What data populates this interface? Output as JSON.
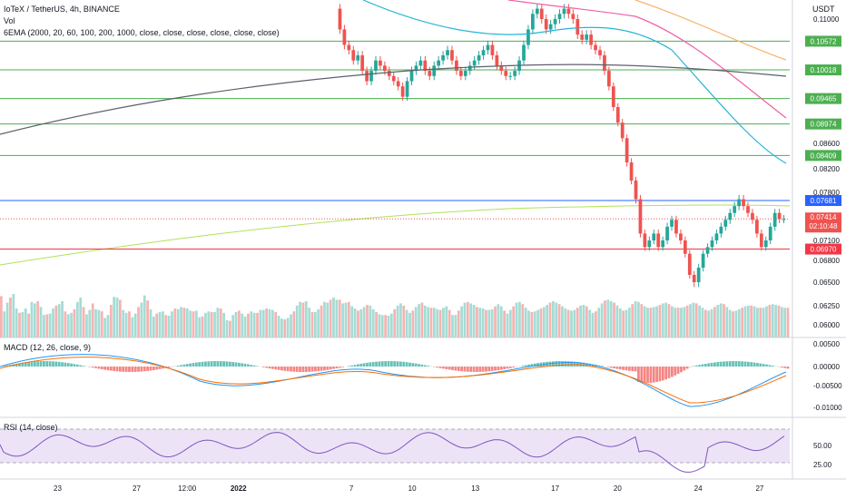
{
  "chart_title": "IoTeX / TetherUS, 4h, BINANCE",
  "currency": "USDT",
  "legend": {
    "vol": "Vol",
    "ema": "6EMA (2000, 20, 60, 100, 200, 1000, close, close, close, close, close, close)",
    "macd": "MACD (12, 26, close, 9)",
    "rsi": "RSI (14, close)"
  },
  "colors": {
    "up": "#26a69a",
    "down": "#ef5350",
    "hline_green": "#4caf50",
    "hline_blue": "#2962ff",
    "hline_red": "#f23645",
    "ema_20": "#26b5d6",
    "ema_60": "#ef5fa7",
    "ema_100": "#f7b36b",
    "ema_200": "#5d606b",
    "ema_1000": "#b2e05a",
    "macd_line": "#2196f3",
    "signal_line": "#ff6d00",
    "rsi_line": "#7e57c2",
    "rsi_band": "#ede3f7"
  },
  "price_axis": {
    "ticks": [
      "0.11000",
      "0.08600",
      "0.08200",
      "0.07800",
      "0.07100",
      "0.06800",
      "0.06500",
      "0.06250",
      "0.06000"
    ],
    "tick_values": [
      0.11,
      0.086,
      0.082,
      0.078,
      0.071,
      0.068,
      0.065,
      0.0625,
      0.06
    ]
  },
  "hlines": [
    {
      "label": "0.10572",
      "value": 0.10572,
      "kind": "green"
    },
    {
      "label": "0.10018",
      "value": 0.10018,
      "kind": "green"
    },
    {
      "label": "0.09465",
      "value": 0.09465,
      "kind": "green"
    },
    {
      "label": "0.08974",
      "value": 0.08974,
      "kind": "green"
    },
    {
      "label": "0.08409",
      "value": 0.08409,
      "kind": "green"
    },
    {
      "label": "0.07681",
      "value": 0.07681,
      "kind": "blue"
    },
    {
      "label": "0.06970",
      "value": 0.0697,
      "kind": "red"
    }
  ],
  "current_price": {
    "label": "0.07414",
    "countdown": "02:10:48",
    "value": 0.07414
  },
  "macd_axis": {
    "ticks": [
      "0.00500",
      "0.00000",
      "-0.00500",
      "-0.01000"
    ],
    "tick_values": [
      0.005,
      0,
      -0.005,
      -0.01
    ]
  },
  "rsi_axis": {
    "ticks": [
      "50.00",
      "25.00"
    ],
    "tick_values": [
      50,
      25
    ]
  },
  "time_axis": [
    {
      "label": "23",
      "pos": 0.073
    },
    {
      "label": "27",
      "pos": 0.173
    },
    {
      "label": "12:00",
      "pos": 0.237
    },
    {
      "label": "2022",
      "pos": 0.302,
      "bold": true
    },
    {
      "label": "7",
      "pos": 0.445
    },
    {
      "label": "10",
      "pos": 0.522
    },
    {
      "label": "13",
      "pos": 0.602
    },
    {
      "label": "17",
      "pos": 0.703
    },
    {
      "label": "20",
      "pos": 0.782
    },
    {
      "label": "24",
      "pos": 0.884
    },
    {
      "label": "27",
      "pos": 0.962
    }
  ],
  "chart_data": {
    "type": "candlestick",
    "title": "IoTeX / TetherUS, 4h, BINANCE",
    "ylim": [
      0.0585,
      0.1125
    ],
    "hist_y_fractions": [
      0.5,
      0.5,
      0.5,
      0.5,
      0.5,
      0.5,
      0.5,
      0.5,
      0.5,
      0.5,
      0.5,
      0.5,
      0.5,
      0.5,
      0.5,
      0.5,
      0.5,
      0.5,
      0.5,
      0.5,
      0.5,
      0.5,
      0.5,
      0.5,
      0.5,
      0.5,
      0.5,
      0.5,
      0.5,
      0.5,
      0.5,
      0.5,
      0.5,
      0.5,
      0.5,
      0.5,
      0.5,
      0.5,
      0.5,
      0.5,
      0.5,
      0.5,
      0.5,
      0.5,
      0.5,
      0.5,
      0.5,
      0.5,
      0.5,
      0.5,
      0.5,
      0.5,
      0.5,
      0.5,
      0.5,
      0.5,
      0.5,
      0.5,
      0.5,
      0.5,
      0.5,
      0.5,
      0.5,
      0.5,
      0.5,
      0.5,
      0.5,
      0.5,
      0.5,
      0.5,
      0.5,
      0.5,
      0.5,
      0.5,
      0.5,
      0.5,
      0.5,
      0.5,
      0.5,
      0.5,
      0.5,
      0.5,
      0.5,
      0.5,
      0.5,
      0.5,
      0.5,
      0.5,
      0.5,
      0.5,
      0.5,
      0.5,
      0.5,
      0.5,
      0.5,
      0.5,
      0.5,
      0.5,
      0.5,
      0.5,
      0.5,
      0.5,
      0.5,
      0.5,
      0.5,
      0.5,
      0.5,
      0.5,
      0.5,
      0.5,
      0.5,
      0.5,
      0.5,
      0.5,
      0.5,
      0.5,
      0.5,
      0.5,
      0.5,
      0.5,
      0.5,
      0.5,
      0.5,
      0.5,
      0.5,
      0.5,
      0.5,
      0.5,
      0.5,
      0.5,
      0.5,
      0.5,
      0.5,
      0.5,
      0.5,
      0.5,
      0.5,
      0.5,
      0.5,
      0.5,
      0.5,
      0.5,
      0.5,
      0.5,
      0.5,
      0.5,
      0.5,
      0.5,
      0.5,
      0.5,
      0.5,
      0.5,
      0.5,
      0.5,
      0.5,
      0.5,
      0.5,
      0.5,
      0.5,
      0.5,
      0.5,
      0.5,
      0.5,
      0.5,
      0.5,
      0.5,
      0.5,
      0.5,
      0.5,
      0.5,
      0.5,
      0.5,
      0.5,
      0.5,
      0.5,
      0.5,
      0.5,
      0.5,
      0.5,
      0.5,
      0.5,
      0.5,
      0.5,
      0.5,
      0.5,
      0.5,
      0.5,
      0.5,
      0.5,
      0.5,
      0.5,
      0.5,
      0.5,
      0.5,
      0.5,
      0.5,
      0.5,
      0.5,
      0.5,
      0.5,
      0.5,
      0.5,
      0.5,
      0.5,
      0.5,
      0.5,
      0.5,
      0.5,
      0.5,
      0.5,
      0.5,
      0.5,
      0.5,
      0.5,
      0.5,
      0.5,
      0.5,
      0.5,
      0.5,
      0.5,
      0.5,
      0.5,
      0.5,
      0.5,
      0.5,
      0.5,
      0.5,
      0.5,
      0.5,
      0.5,
      0.5,
      0.5,
      0.5,
      0.5,
      0.5,
      0.5,
      0.5,
      0.5,
      0.5,
      0.5,
      0.5,
      0.5,
      0.5,
      0.5,
      0.5,
      0.5,
      0.5,
      0.5,
      0.5,
      0.5,
      0.5,
      0.5,
      0.5,
      0.5,
      0.5,
      0.5,
      0.5,
      0.5,
      0.5
    ],
    "volume_y_fractions": [
      0.57,
      0.36,
      0.48,
      0.55,
      0.6,
      0.4,
      0.34,
      0.35,
      0.4,
      0.33,
      0.49,
      0.47,
      0.5,
      0.42,
      0.31,
      0.32,
      0.33,
      0.4,
      0.44,
      0.46,
      0.5,
      0.36,
      0.32,
      0.34,
      0.39,
      0.49,
      0.55,
      0.42,
      0.32,
      0.38,
      0.47,
      0.39,
      0.38,
      0.36,
      0.27,
      0.31,
      0.45,
      0.56,
      0.55,
      0.52,
      0.38,
      0.34,
      0.36,
      0.28,
      0.33,
      0.42,
      0.48,
      0.58,
      0.51,
      0.39,
      0.29,
      0.33,
      0.35,
      0.36,
      0.31,
      0.3,
      0.36,
      0.4,
      0.39,
      0.42,
      0.41,
      0.4,
      0.37,
      0.36,
      0.37,
      0.28,
      0.29,
      0.34,
      0.36,
      0.35,
      0.35,
      0.41,
      0.4,
      0.34,
      0.24,
      0.23,
      0.31,
      0.35,
      0.37,
      0.33,
      0.29,
      0.33,
      0.36,
      0.34,
      0.34,
      0.38,
      0.38,
      0.4,
      0.39,
      0.38,
      0.35,
      0.3,
      0.26,
      0.25,
      0.27,
      0.32,
      0.36,
      0.44,
      0.49,
      0.48,
      0.5,
      0.41,
      0.35,
      0.35,
      0.39,
      0.44,
      0.49,
      0.48,
      0.52,
      0.55,
      0.52,
      0.52,
      0.47,
      0.48,
      0.49,
      0.43,
      0.4,
      0.37,
      0.39,
      0.42,
      0.45,
      0.44,
      0.39,
      0.35,
      0.32,
      0.31,
      0.31,
      0.3,
      0.33,
      0.39,
      0.44,
      0.47,
      0.44,
      0.38,
      0.34,
      0.37,
      0.42,
      0.46,
      0.48,
      0.44,
      0.42,
      0.41,
      0.41,
      0.39,
      0.38,
      0.41,
      0.43,
      0.38,
      0.31,
      0.31,
      0.37,
      0.43,
      0.48,
      0.49,
      0.47,
      0.45,
      0.42,
      0.41,
      0.4,
      0.38,
      0.38,
      0.39,
      0.43,
      0.46,
      0.43,
      0.37,
      0.33,
      0.38,
      0.43,
      0.48,
      0.49,
      0.46,
      0.41,
      0.37,
      0.35,
      0.36,
      0.38,
      0.4,
      0.42,
      0.45,
      0.48,
      0.5,
      0.48,
      0.46,
      0.43,
      0.4,
      0.38,
      0.37,
      0.38,
      0.41,
      0.44,
      0.45,
      0.43,
      0.38,
      0.34,
      0.36,
      0.41,
      0.47,
      0.51,
      0.52,
      0.5,
      0.48,
      0.44,
      0.4,
      0.37,
      0.38,
      0.41,
      0.46,
      0.5,
      0.49,
      0.46,
      0.43,
      0.41,
      0.41,
      0.42,
      0.43,
      0.45,
      0.47,
      0.48,
      0.46,
      0.43,
      0.41,
      0.41,
      0.41,
      0.42,
      0.44,
      0.46,
      0.48,
      0.47,
      0.44,
      0.41,
      0.38,
      0.37,
      0.39,
      0.42,
      0.45,
      0.47,
      0.46,
      0.42,
      0.38,
      0.36,
      0.37,
      0.39,
      0.41,
      0.43,
      0.44,
      0.44,
      0.43,
      0.41,
      0.41,
      0.41,
      0.43,
      0.45,
      0.46,
      0.45,
      0.44,
      0.42,
      0.41,
      0.41
    ],
    "rsi_y_fractions": [
      0.5,
      0.5
    ]
  }
}
